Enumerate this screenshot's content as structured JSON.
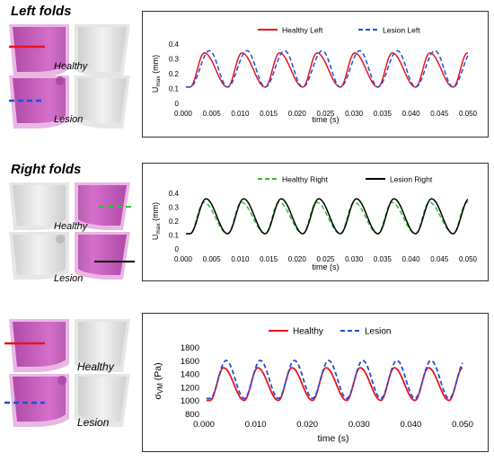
{
  "sections": [
    {
      "title": "Left folds",
      "fold_labels": [
        "Healthy",
        "Lesion"
      ]
    },
    {
      "title": "Right folds",
      "fold_labels": [
        "Healthy",
        "Lesion"
      ]
    },
    {
      "title": "",
      "fold_labels": [
        "Healthy",
        "Lesion"
      ]
    }
  ],
  "chart_data": [
    {
      "type": "line",
      "xlabel": "time (s)",
      "ylabel": "U",
      "ylabel_sub": "max",
      "ylabel_unit": "(mm)",
      "xlim": [
        0,
        0.05
      ],
      "ylim": [
        0,
        0.4
      ],
      "xticks": [
        "0.000",
        "0.005",
        "0.010",
        "0.015",
        "0.020",
        "0.025",
        "0.030",
        "0.035",
        "0.040",
        "0.045",
        "0.050"
      ],
      "yticks": [
        "0",
        "0.1",
        "0.2",
        "0.3",
        "0.4"
      ],
      "series": [
        {
          "name": "Healthy Left",
          "color": "#e8141d",
          "style": "solid",
          "min": 0.11,
          "max": 0.34,
          "t0": 0.0012,
          "period": 0.0066,
          "peak": 0.0037
        },
        {
          "name": "Lesion Left",
          "color": "#1f4fd8",
          "style": "dashed",
          "min": 0.11,
          "max": 0.355,
          "t0": 0.0012,
          "period": 0.0066,
          "peak": 0.0046
        }
      ]
    },
    {
      "type": "line",
      "xlabel": "time (s)",
      "ylabel": "U",
      "ylabel_sub": "max",
      "ylabel_unit": "(mm)",
      "xlim": [
        0,
        0.05
      ],
      "ylim": [
        0,
        0.4
      ],
      "xticks": [
        "0.000",
        "0.005",
        "0.010",
        "0.015",
        "0.020",
        "0.025",
        "0.030",
        "0.035",
        "0.040",
        "0.045",
        "0.050"
      ],
      "yticks": [
        "0",
        "0.1",
        "0.2",
        "0.3",
        "0.4"
      ],
      "series": [
        {
          "name": "Healthy Right",
          "color": "#2fbf2f",
          "style": "dashed",
          "min": 0.11,
          "max": 0.335,
          "t0": 0.0012,
          "period": 0.0066,
          "peak": 0.0036
        },
        {
          "name": "Lesion Right",
          "color": "#000000",
          "style": "solid",
          "min": 0.11,
          "max": 0.36,
          "t0": 0.0012,
          "period": 0.0066,
          "peak": 0.004
        }
      ]
    },
    {
      "type": "line",
      "xlabel": "time (s)",
      "ylabel": "σ",
      "ylabel_sub": "VM",
      "ylabel_unit": "(Pa)",
      "xlim": [
        0,
        0.05
      ],
      "ylim": [
        800,
        1800
      ],
      "xticks": [
        "0.000",
        "0.010",
        "0.020",
        "0.030",
        "0.040",
        "0.050"
      ],
      "yticks": [
        "800",
        "1000",
        "1200",
        "1400",
        "1600",
        "1800"
      ],
      "series": [
        {
          "name": "Healthy",
          "color": "#e8141d",
          "style": "solid",
          "min": 1010,
          "max": 1500,
          "t0": 0.0012,
          "period": 0.0066,
          "peak": 0.0038
        },
        {
          "name": "Lesion",
          "color": "#1f4fd8",
          "style": "dashed",
          "min": 1040,
          "max": 1610,
          "t0": 0.0012,
          "period": 0.0066,
          "peak": 0.0043
        }
      ]
    }
  ]
}
